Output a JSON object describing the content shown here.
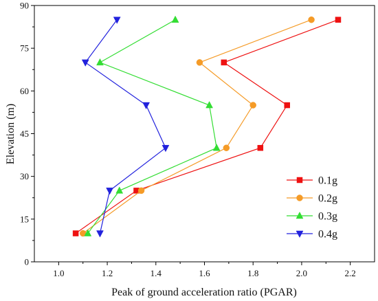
{
  "chart_data": {
    "type": "line",
    "xlabel": "Peak of ground acceleration ratio (PGAR)",
    "ylabel": "Elevation (m)",
    "xlim": [
      0.9,
      2.3
    ],
    "ylim": [
      0,
      90
    ],
    "xticks": [
      1.0,
      1.2,
      1.4,
      1.6,
      1.8,
      2.0,
      2.2
    ],
    "xtick_labels": [
      "1.0",
      "1.2",
      "1.4",
      "1.6",
      "1.8",
      "2.0",
      "2.2"
    ],
    "yticks": [
      0,
      15,
      30,
      45,
      60,
      75,
      90
    ],
    "ytick_labels": [
      "0",
      "15",
      "30",
      "45",
      "60",
      "75",
      "90"
    ],
    "grid": false,
    "legend_position": "right",
    "series": [
      {
        "name": "0.1g",
        "color": "#ee1111",
        "marker": "square",
        "x": [
          1.07,
          1.32,
          1.83,
          1.94,
          1.68,
          2.15
        ],
        "y": [
          10,
          25,
          40,
          55,
          70,
          85
        ]
      },
      {
        "name": "0.2g",
        "color": "#f59b27",
        "marker": "circle",
        "x": [
          1.1,
          1.34,
          1.69,
          1.8,
          1.58,
          2.04
        ],
        "y": [
          10,
          25,
          40,
          55,
          70,
          85
        ]
      },
      {
        "name": "0.3g",
        "color": "#33dd33",
        "marker": "triangle-up",
        "x": [
          1.12,
          1.25,
          1.65,
          1.62,
          1.17,
          1.48
        ],
        "y": [
          10,
          25,
          40,
          55,
          70,
          85
        ]
      },
      {
        "name": "0.4g",
        "color": "#2222dd",
        "marker": "triangle-down",
        "x": [
          1.17,
          1.21,
          1.44,
          1.36,
          1.11,
          1.24
        ],
        "y": [
          10,
          25,
          40,
          55,
          70,
          85
        ]
      }
    ]
  }
}
